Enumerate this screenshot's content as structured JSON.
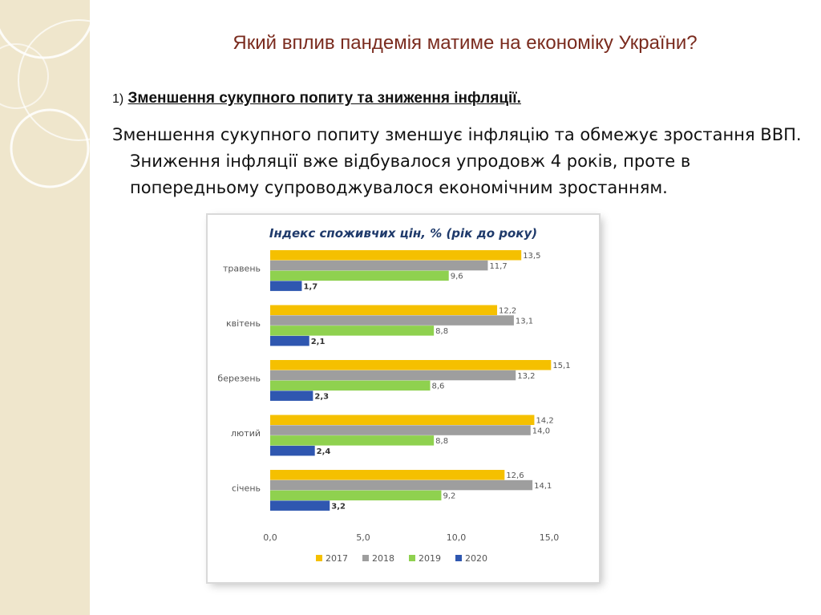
{
  "slide": {
    "title": "Який вплив пандемія матиме на економіку України?",
    "subheading_number": "1)",
    "subheading_text": "Зменшення сукупного попиту та зниження інфляції.",
    "body": "Зменшення сукупного попиту зменшує інфляцію та обмежує зростання ВВП. Зниження інфляції вже відбувалося упродовж 4 років, проте в попередньому супроводжувалося економічним зростанням."
  },
  "colors": {
    "title": "#7a2b1e",
    "decor_strip": "#efe6cc",
    "series_2017": "#f5c000",
    "series_2018": "#9e9e9e",
    "series_2019": "#8fd14f",
    "series_2020": "#2f57b0"
  },
  "chart_data": {
    "type": "bar",
    "orientation": "horizontal",
    "title": "Індекс споживчих цін, % (рік до року)",
    "categories": [
      "травень",
      "квітень",
      "березень",
      "лютий",
      "січень"
    ],
    "series": [
      {
        "name": "2017",
        "color": "#f5c000",
        "values": [
          13.5,
          12.2,
          15.1,
          14.2,
          12.6
        ],
        "labels": [
          "13,5",
          "12,2",
          "15,1",
          "14,2",
          "12,6"
        ]
      },
      {
        "name": "2018",
        "color": "#9e9e9e",
        "values": [
          11.7,
          13.1,
          13.2,
          14.0,
          14.1
        ],
        "labels": [
          "11,7",
          "13,1",
          "13,2",
          "14,0",
          "14,1"
        ]
      },
      {
        "name": "2019",
        "color": "#8fd14f",
        "values": [
          9.6,
          8.8,
          8.6,
          8.8,
          9.2
        ],
        "labels": [
          "9,6",
          "8,8",
          "8,6",
          "8,8",
          "9,2"
        ]
      },
      {
        "name": "2020",
        "color": "#2f57b0",
        "values": [
          1.7,
          2.1,
          2.3,
          2.4,
          3.2
        ],
        "labels": [
          "1,7",
          "2,1",
          "2,3",
          "2,4",
          "3,2"
        ]
      }
    ],
    "xlim": [
      0,
      15
    ],
    "ticks": [
      0,
      5,
      10,
      15
    ],
    "tick_labels": [
      "0,0",
      "5,0",
      "10,0",
      "15,0"
    ],
    "grid": false,
    "legend": "bottom"
  }
}
